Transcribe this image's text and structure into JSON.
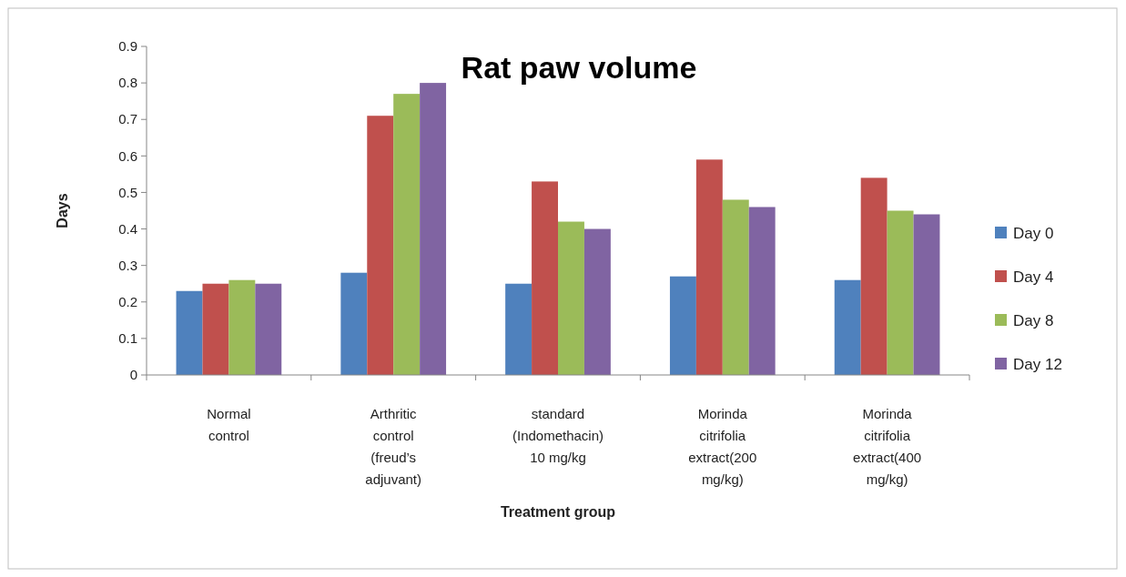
{
  "chart_data": {
    "type": "bar",
    "title": "Rat paw volume",
    "xlabel": "Treatment group",
    "ylabel": "Days",
    "categories": [
      "Normal control",
      "Arthritic control (freud’s adjuvant)",
      "standard (Indomethacin) 10 mg/kg",
      "Morinda citrifolia extract(200 mg/kg)",
      "Morinda citrifolia extract(400 mg/kg)"
    ],
    "series": [
      {
        "name": "Day 0",
        "color": "#4f81bd",
        "values": [
          0.23,
          0.28,
          0.25,
          0.27,
          0.26
        ]
      },
      {
        "name": "Day 4",
        "color": "#c0504d",
        "values": [
          0.25,
          0.71,
          0.53,
          0.59,
          0.54
        ]
      },
      {
        "name": "Day 8",
        "color": "#9bbb59",
        "values": [
          0.26,
          0.77,
          0.42,
          0.48,
          0.45
        ]
      },
      {
        "name": "Day 12",
        "color": "#8064a2",
        "values": [
          0.25,
          0.8,
          0.4,
          0.46,
          0.44
        ]
      }
    ],
    "ylim": [
      0,
      0.9
    ],
    "yticks": [
      0,
      0.1,
      0.2,
      0.3,
      0.4,
      0.5,
      0.6,
      0.7,
      0.8,
      0.9
    ],
    "grid": false,
    "legend": "right"
  }
}
